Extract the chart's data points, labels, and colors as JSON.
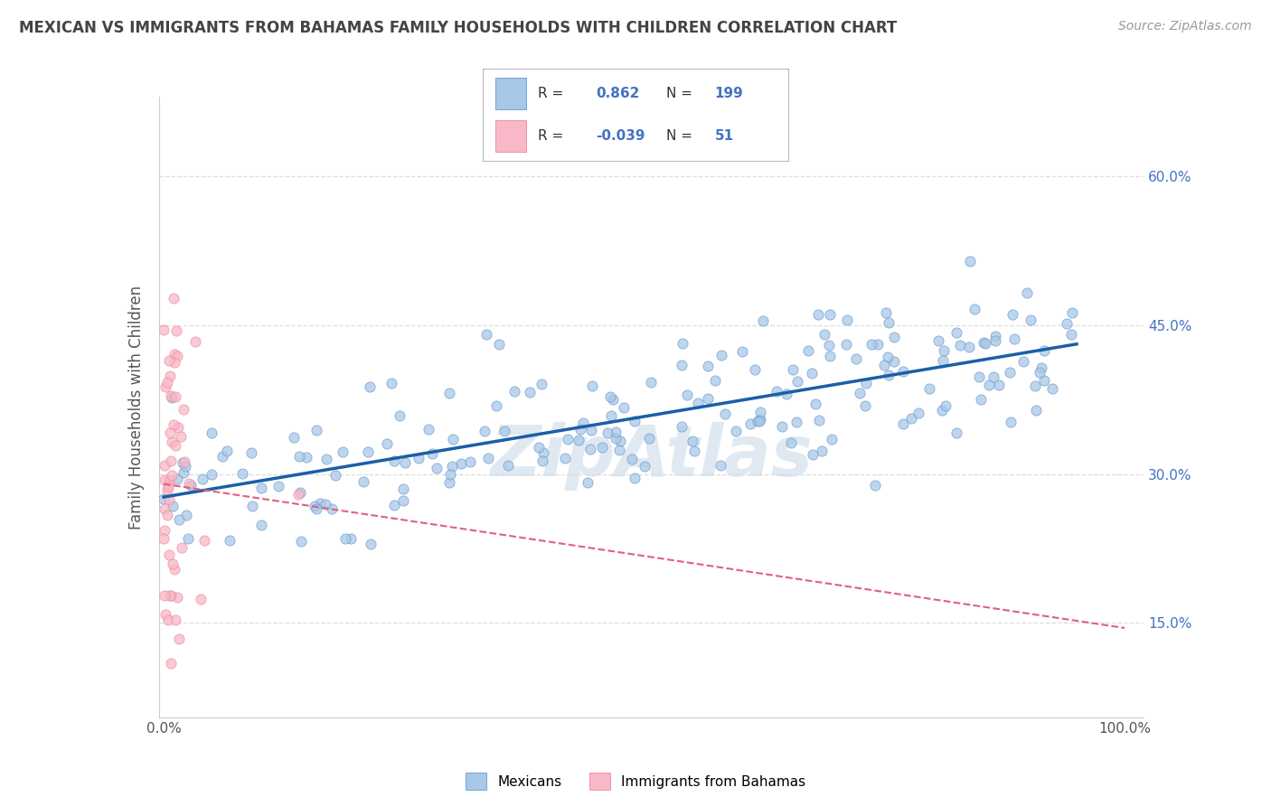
{
  "title": "MEXICAN VS IMMIGRANTS FROM BAHAMAS FAMILY HOUSEHOLDS WITH CHILDREN CORRELATION CHART",
  "source": "Source: ZipAtlas.com",
  "ylabel": "Family Households with Children",
  "watermark": "ZipAtlas",
  "blue_R": 0.862,
  "blue_N": 199,
  "pink_R": -0.039,
  "pink_N": 51,
  "blue_color": "#a8c8e8",
  "blue_edge_color": "#6699cc",
  "pink_color": "#f8b8c8",
  "pink_edge_color": "#ee8899",
  "blue_line_color": "#1a5fa8",
  "pink_line_color": "#e06080",
  "legend_labels": [
    "Mexicans",
    "Immigrants from Bahamas"
  ],
  "title_color": "#444444",
  "axis_color": "#cccccc",
  "grid_color": "#dddddd",
  "background_color": "#ffffff",
  "watermark_color": "#c8d8e8",
  "right_tick_color": "#4472c4"
}
